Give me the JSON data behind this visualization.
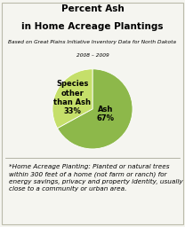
{
  "title_line1": "Percent Ash",
  "title_line2": "in Home Acreage Plantings",
  "subtitle_line1": "Based on Great Plains Initiative Inventory Data for North Dakota",
  "subtitle_line2": "2008 – 2009",
  "slices": [
    67,
    33
  ],
  "slice_colors": [
    "#8db84a",
    "#c5df6a"
  ],
  "startangle": 90,
  "counterclock": false,
  "ash_label": "Ash\n67%",
  "other_label": "Species\nother\nthan Ash\n33%",
  "footnote": "*Home Acreage Planting: Planted or natural trees\nwithin 300 feet of a home (not farm or ranch) for\nenergy savings, privacy and property identity, usually\nclose to a community or urban area.",
  "background_color": "#f5f5f0",
  "title_fontsize": 7.5,
  "subtitle_fontsize": 4.2,
  "label_fontsize": 6.0,
  "footnote_fontsize": 5.2,
  "border_color": "#bbbbaa"
}
